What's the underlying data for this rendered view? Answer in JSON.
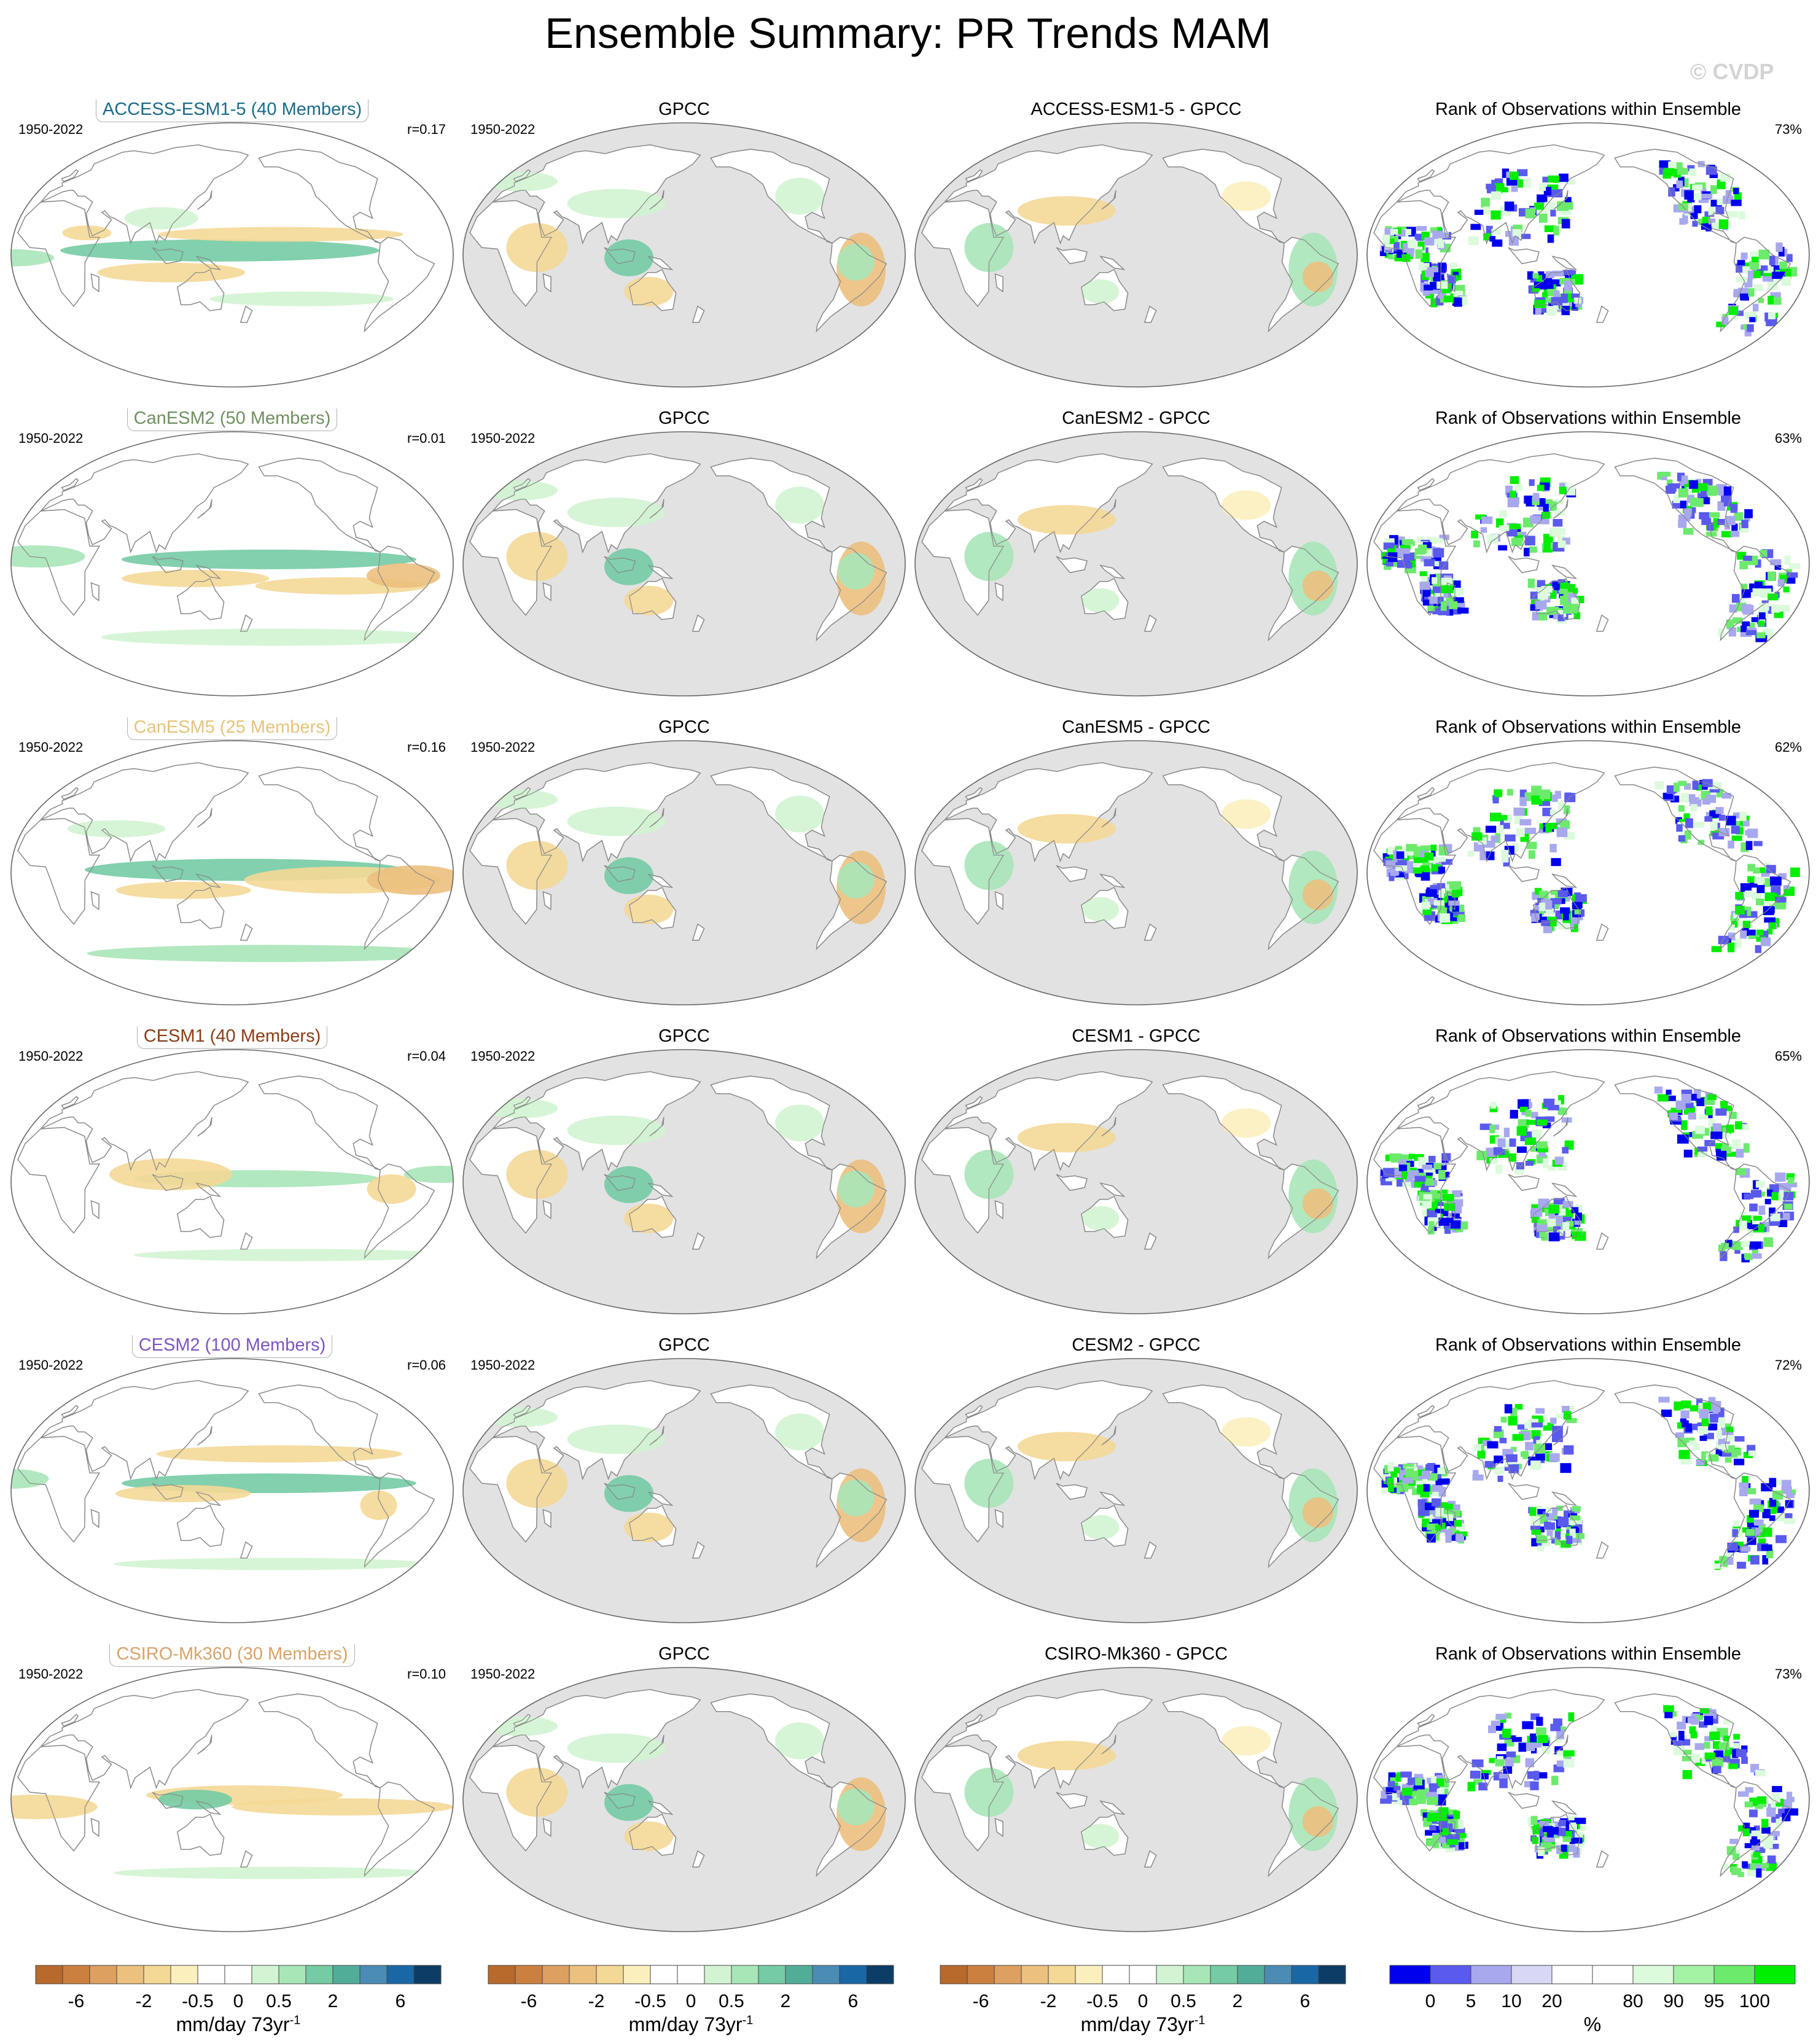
{
  "title": "Ensemble Summary: PR Trends MAM",
  "watermark": "© CVDP",
  "columns": [
    "ensemble",
    "observed",
    "difference",
    "rank"
  ],
  "rows": [
    {
      "title": "ACCESS-ESM1-5 (40 Members)",
      "color": "#1a6a8a",
      "period": "1950-2022",
      "r": "r=0.17",
      "obs_title": "GPCC",
      "obs_period": "1950-2022",
      "diff_title": "ACCESS-ESM1-5 - GPCC",
      "rank_title": "Rank of Observations within Ensemble",
      "rank_pct": "73%"
    },
    {
      "title": "CanESM2 (50 Members)",
      "color": "#6f8f60",
      "period": "1950-2022",
      "r": "r=0.01",
      "obs_title": "GPCC",
      "obs_period": "1950-2022",
      "diff_title": "CanESM2 - GPCC",
      "rank_title": "Rank of Observations within Ensemble",
      "rank_pct": "63%"
    },
    {
      "title": "CanESM5 (25 Members)",
      "color": "#e6c47a",
      "period": "1950-2022",
      "r": "r=0.16",
      "obs_title": "GPCC",
      "obs_period": "1950-2022",
      "diff_title": "CanESM5 - GPCC",
      "rank_title": "Rank of Observations within Ensemble",
      "rank_pct": "62%"
    },
    {
      "title": "CESM1 (40 Members)",
      "color": "#8a3d16",
      "period": "1950-2022",
      "r": "r=0.04",
      "obs_title": "GPCC",
      "obs_period": "1950-2022",
      "diff_title": "CESM1 - GPCC",
      "rank_title": "Rank of Observations within Ensemble",
      "rank_pct": "65%"
    },
    {
      "title": "CESM2 (100 Members)",
      "color": "#7b55c0",
      "period": "1950-2022",
      "r": "r=0.06",
      "obs_title": "GPCC",
      "obs_period": "1950-2022",
      "diff_title": "CESM2 - GPCC",
      "rank_title": "Rank of Observations within Ensemble",
      "rank_pct": "72%"
    },
    {
      "title": "CSIRO-Mk360 (30 Members)",
      "color": "#d8a36a",
      "period": "1950-2022",
      "r": "r=0.10",
      "obs_title": "GPCC",
      "obs_period": "1950-2022",
      "diff_title": "CSIRO-Mk360 - GPCC",
      "rank_title": "Rank of Observations within Ensemble",
      "rank_pct": "73%"
    }
  ],
  "colorbar_trend": {
    "colors": [
      "#b76a2c",
      "#cc8040",
      "#deA060",
      "#ecc07e",
      "#f4d896",
      "#fbefbe",
      "#ffffff",
      "#ffffff",
      "#d2f4d2",
      "#a8e6b8",
      "#74cba4",
      "#52ad98",
      "#4a8cb4",
      "#1a67a6",
      "#0d3d66"
    ],
    "labels": [
      "-6",
      "-2",
      "-0.5",
      "0",
      "0.5",
      "2",
      "6"
    ],
    "unit": "mm/day 73yr",
    "unit_sup": "-1"
  },
  "colorbar_rank": {
    "colors": [
      "#0000ee",
      "#5a5aee",
      "#a8a8ee",
      "#d8d8f6",
      "#ffffff",
      "#ffffff",
      "#dcfadc",
      "#a4f2a4",
      "#6cea6c",
      "#00ee00"
    ],
    "labels": [
      "0",
      "5",
      "10",
      "20",
      "80",
      "90",
      "95",
      "100"
    ],
    "unit": "%"
  },
  "chart_data": {
    "type": "heatmap",
    "title": "Ensemble Summary: PR Trends MAM",
    "variable": "PR",
    "season": "MAM",
    "period": "1950-2022",
    "observations": "GPCC",
    "models": [
      {
        "name": "ACCESS-ESM1-5",
        "members": 40,
        "pattern_correlation": 0.17,
        "rank_percent": 73
      },
      {
        "name": "CanESM2",
        "members": 50,
        "pattern_correlation": 0.01,
        "rank_percent": 63
      },
      {
        "name": "CanESM5",
        "members": 25,
        "pattern_correlation": 0.16,
        "rank_percent": 62
      },
      {
        "name": "CESM1",
        "members": 40,
        "pattern_correlation": 0.04,
        "rank_percent": 65
      },
      {
        "name": "CESM2",
        "members": 100,
        "pattern_correlation": 0.06,
        "rank_percent": 72
      },
      {
        "name": "CSIRO-Mk360",
        "members": 30,
        "pattern_correlation": 0.1,
        "rank_percent": 73
      }
    ],
    "trend_contour_levels": [
      -6,
      -4,
      -2,
      -1,
      -0.5,
      -0.25,
      0,
      0.25,
      0.5,
      1,
      2,
      4,
      6
    ],
    "rank_levels": [
      0,
      5,
      10,
      20,
      80,
      90,
      95,
      100
    ]
  }
}
